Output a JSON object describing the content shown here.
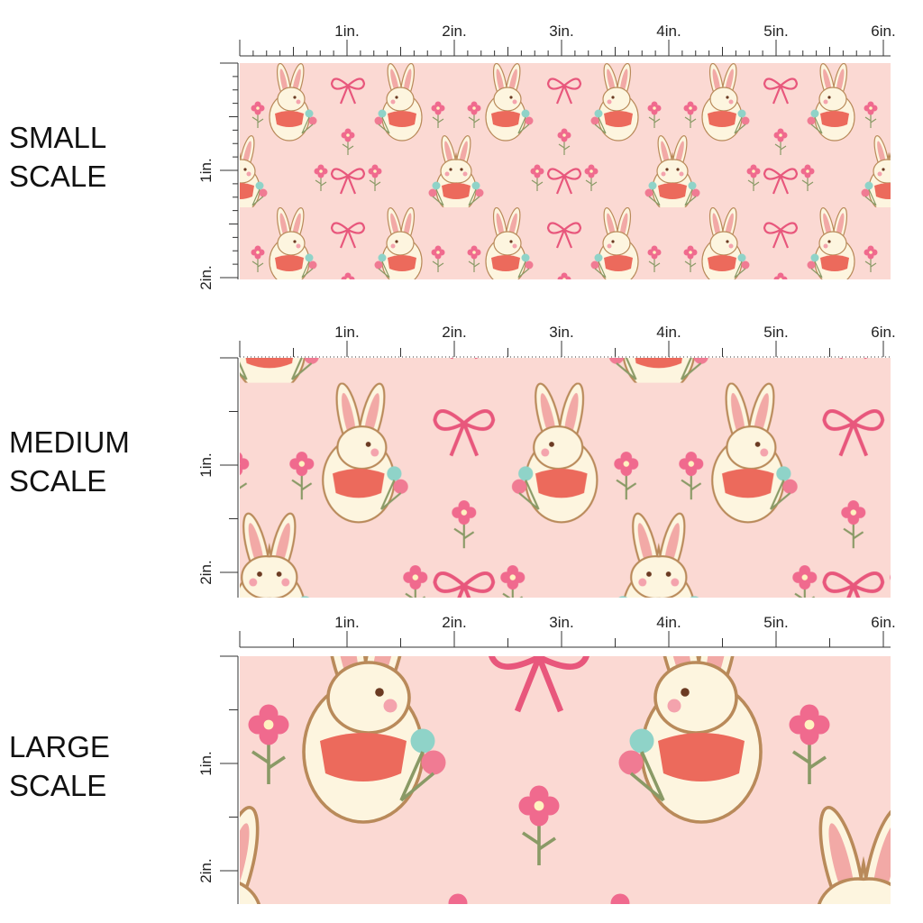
{
  "panels": [
    {
      "label": [
        "SMALL",
        "SCALE"
      ],
      "ruler_top": [
        "1in.",
        "2in.",
        "3in.",
        "4in.",
        "5in.",
        "6in."
      ],
      "ruler_left": [
        "1in.",
        "2in."
      ]
    },
    {
      "label": [
        "MEDIUM",
        "SCALE"
      ],
      "ruler_top": [
        "1in.",
        "2in.",
        "3in.",
        "4in.",
        "5in.",
        "6in."
      ],
      "ruler_left": [
        "1in.",
        "2in."
      ]
    },
    {
      "label": [
        "LARGE",
        "SCALE"
      ],
      "ruler_top": [
        "1in.",
        "2in.",
        "3in.",
        "4in.",
        "5in.",
        "6in."
      ],
      "ruler_left": [
        "1in.",
        "2in."
      ]
    }
  ]
}
